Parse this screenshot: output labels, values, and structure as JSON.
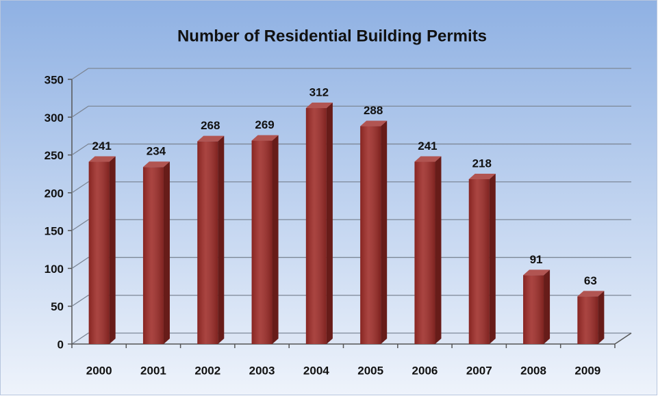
{
  "chart_data": {
    "type": "bar",
    "title": "Number of Residential Building Permits",
    "categories": [
      "2000",
      "2001",
      "2002",
      "2003",
      "2004",
      "2005",
      "2006",
      "2007",
      "2008",
      "2009"
    ],
    "values": [
      241,
      234,
      268,
      269,
      312,
      288,
      241,
      218,
      91,
      63
    ],
    "color": "#9e2b27",
    "ylim": [
      0,
      350
    ],
    "yticks": [
      0,
      50,
      100,
      150,
      200,
      250,
      300,
      350
    ],
    "grid": true
  }
}
